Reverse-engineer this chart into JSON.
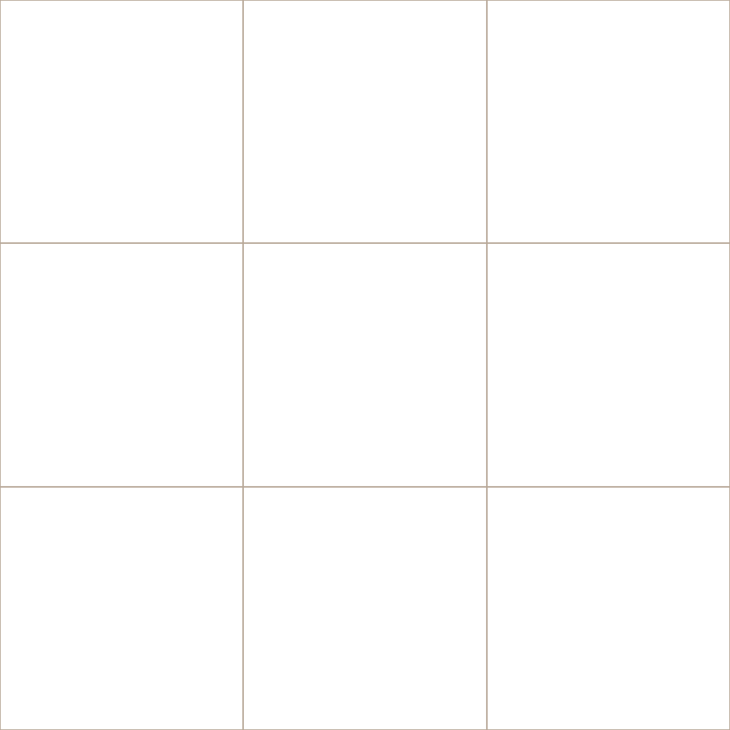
{
  "bg_color": "#f0ede6",
  "cell_bg": "#ffffff",
  "border_color": "#b8a898",
  "figsize": [
    10.24,
    10.24
  ],
  "dpi": 100
}
